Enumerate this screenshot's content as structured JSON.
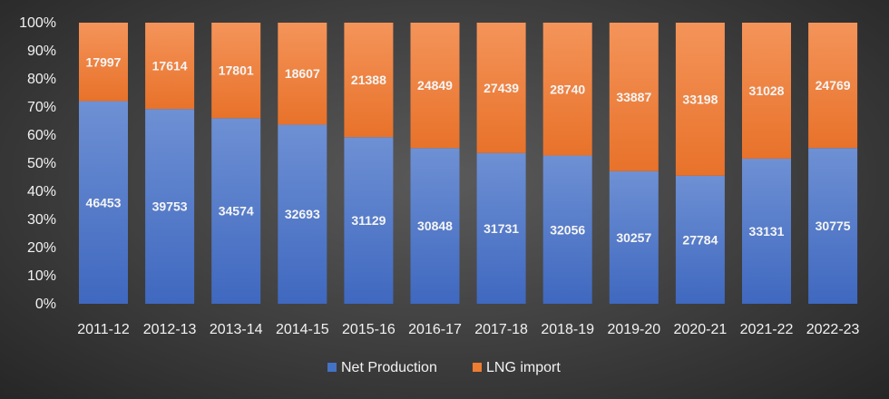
{
  "chart_data": {
    "type": "bar",
    "stacked": "percent",
    "title": "",
    "xlabel": "",
    "ylabel": "",
    "ylim": [
      0,
      100
    ],
    "y_ticks": [
      "0%",
      "10%",
      "20%",
      "30%",
      "40%",
      "50%",
      "60%",
      "70%",
      "80%",
      "90%",
      "100%"
    ],
    "categories": [
      "2011-12",
      "2012-13",
      "2013-14",
      "2014-15",
      "2015-16",
      "2016-17",
      "2017-18",
      "2018-19",
      "2019-20",
      "2020-21",
      "2021-22",
      "2022-23"
    ],
    "series": [
      {
        "name": "Net Production",
        "color": "#4472C4",
        "values": [
          46453,
          39753,
          34574,
          32693,
          31129,
          30848,
          31731,
          32056,
          30257,
          27784,
          33131,
          30775
        ]
      },
      {
        "name": "LNG import",
        "color": "#ED7D31",
        "values": [
          17997,
          17614,
          17801,
          18607,
          21388,
          24849,
          27439,
          28740,
          33887,
          33198,
          31028,
          24769
        ]
      }
    ],
    "legend_position": "bottom"
  }
}
